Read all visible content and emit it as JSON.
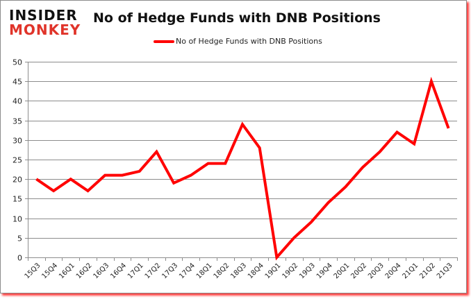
{
  "brand": {
    "line1": "INSIDER",
    "line2": "MONKEY"
  },
  "colors": {
    "series": "#ff0000",
    "grid": "#8c8c8c",
    "brand_red": "#e0342a",
    "shadow": "#ff3b3b"
  },
  "chart_data": {
    "type": "line",
    "title": "No of Hedge Funds with DNB Positions",
    "xlabel": "",
    "ylabel": "",
    "ylim": [
      0,
      50
    ],
    "yticks": [
      0,
      5,
      10,
      15,
      20,
      25,
      30,
      35,
      40,
      45,
      50
    ],
    "grid": true,
    "legend_position": "top",
    "categories": [
      "15Q3",
      "15Q4",
      "16Q1",
      "16Q2",
      "16Q3",
      "16Q4",
      "17Q1",
      "17Q2",
      "17Q3",
      "17Q4",
      "18Q1",
      "18Q2",
      "18Q3",
      "18Q4",
      "19Q1",
      "19Q2",
      "19Q3",
      "19Q4",
      "20Q1",
      "20Q2",
      "20Q3",
      "20Q4",
      "21Q1",
      "21Q2",
      "21Q3"
    ],
    "series": [
      {
        "name": "No of Hedge Funds with DNB Positions",
        "values": [
          20,
          17,
          20,
          17,
          21,
          21,
          22,
          27,
          19,
          21,
          24,
          24,
          34,
          28,
          0,
          5,
          9,
          14,
          18,
          23,
          27,
          32,
          29,
          45,
          33
        ]
      }
    ]
  }
}
